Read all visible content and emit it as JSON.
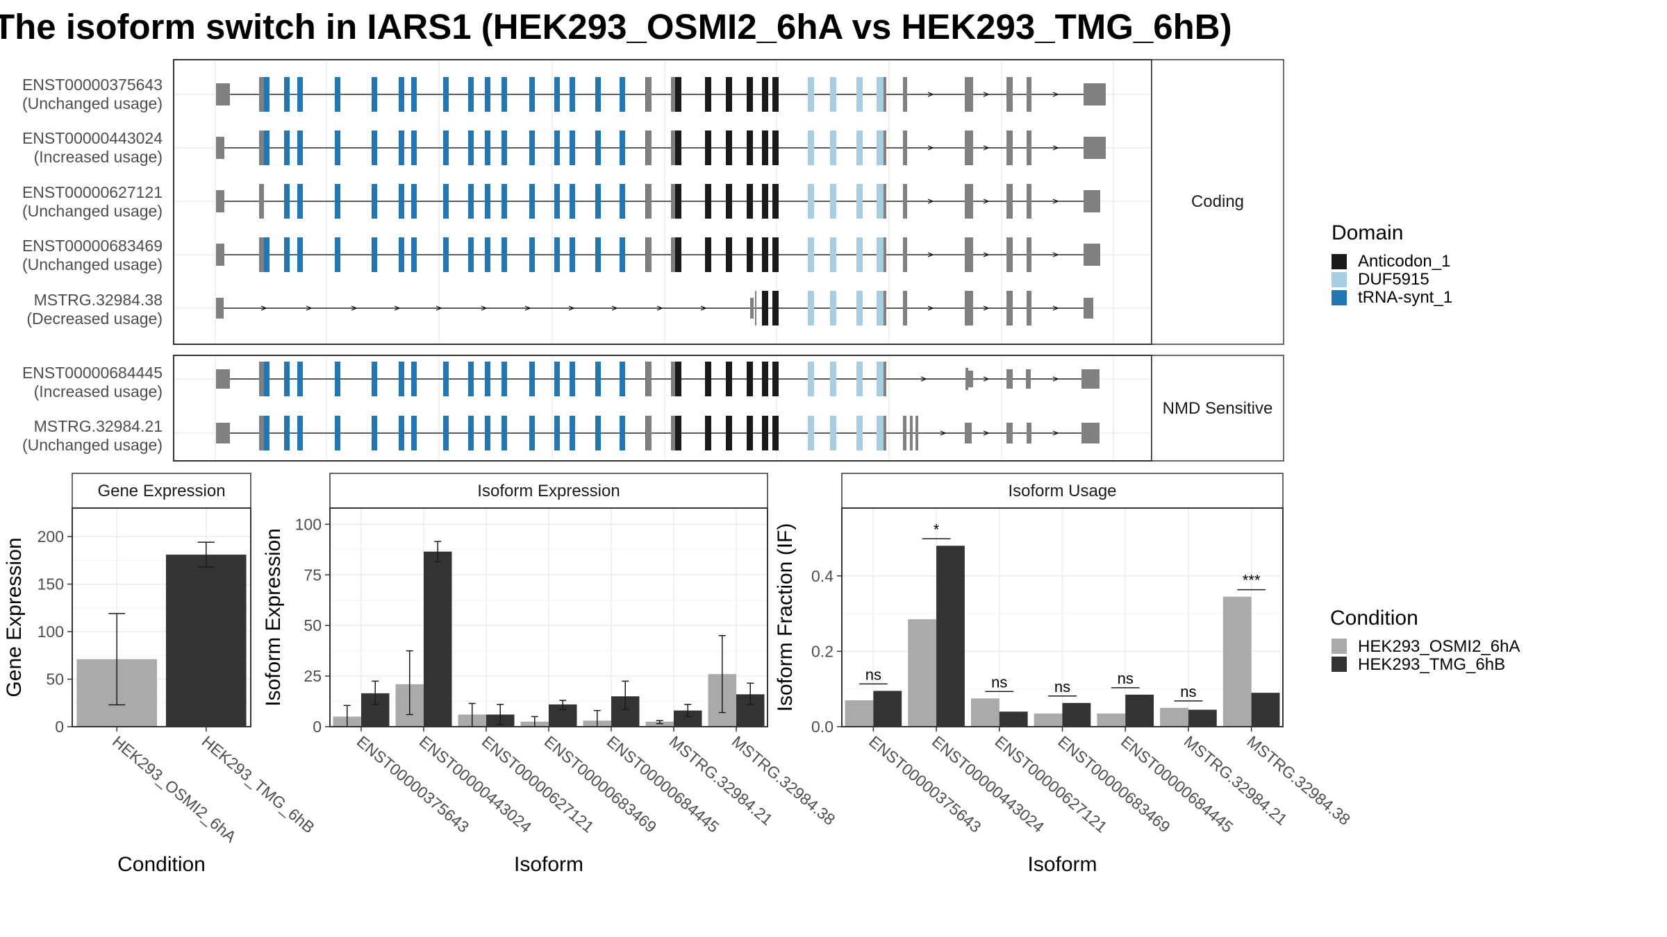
{
  "title": "The isoform switch in IARS1 (HEK293_OSMI2_6hA vs HEK293_TMG_6hB)",
  "colors": {
    "anticodon": "#1a1a1a",
    "duf": "#a6cee3",
    "trna": "#1f78b4",
    "exon_other": "#808080",
    "cond_a": "#aaaaaa",
    "cond_b": "#333333",
    "panel_border": "#333333",
    "strip_fill": "#ffffff",
    "grid": "#ebebeb"
  },
  "structure": {
    "coding_label": "Coding",
    "nmd_label": "NMD Sensitive",
    "coding": [
      {
        "id": "ENST00000375643",
        "usage": "(Unchanged usage)"
      },
      {
        "id": "ENST00000443024",
        "usage": "(Increased usage)"
      },
      {
        "id": "ENST00000627121",
        "usage": "(Unchanged usage)"
      },
      {
        "id": "ENST00000683469",
        "usage": "(Unchanged usage)"
      },
      {
        "id": "MSTRG.32984.38",
        "usage": "(Decreased usage)"
      }
    ],
    "nmd": [
      {
        "id": "ENST00000684445",
        "usage": "(Increased usage)"
      },
      {
        "id": "MSTRG.32984.21",
        "usage": "(Unchanged usage)"
      }
    ]
  },
  "legends": {
    "domain_title": "Domain",
    "domain_items": [
      {
        "label": "Anticodon_1",
        "color": "#1a1a1a"
      },
      {
        "label": "DUF5915",
        "color": "#a6cee3"
      },
      {
        "label": "tRNA-synt_1",
        "color": "#1f78b4"
      }
    ],
    "condition_title": "Condition",
    "condition_items": [
      {
        "label": "HEK293_OSMI2_6hA",
        "color": "#aaaaaa"
      },
      {
        "label": "HEK293_TMG_6hB",
        "color": "#333333"
      }
    ]
  },
  "chart_data": [
    {
      "type": "bar",
      "title": "Gene Expression",
      "xlabel": "Condition",
      "ylabel": "Gene Expression",
      "ylim": [
        0,
        230
      ],
      "yticks": [
        0,
        50,
        100,
        150,
        200
      ],
      "categories": [
        "HEK293_OSMI2_6hA",
        "HEK293_TMG_6hB"
      ],
      "values": [
        71,
        181
      ],
      "error_low": [
        23,
        168
      ],
      "error_high": [
        119,
        194
      ]
    },
    {
      "type": "bar",
      "title": "Isoform Expression",
      "xlabel": "Isoform",
      "ylabel": "Isoform Expression",
      "ylim": [
        0,
        108
      ],
      "yticks": [
        0,
        25,
        50,
        75,
        100
      ],
      "categories": [
        "ENST00000375643",
        "ENST00000443024",
        "ENST00000627121",
        "ENST00000683469",
        "ENST00000684445",
        "MSTRG.32984.21",
        "MSTRG.32984.38"
      ],
      "series": [
        {
          "name": "HEK293_OSMI2_6hA",
          "values": [
            5,
            21,
            6,
            2.5,
            3,
            2.5,
            26
          ],
          "error_low": [
            0,
            6,
            0,
            0,
            0,
            1.5,
            7
          ],
          "error_high": [
            10.5,
            37.5,
            11.5,
            5,
            8,
            3,
            45
          ]
        },
        {
          "name": "HEK293_TMG_6hB",
          "values": [
            16.5,
            86.5,
            6,
            11,
            15,
            8,
            16
          ],
          "error_low": [
            11,
            81.5,
            1,
            8.5,
            8.5,
            5,
            11
          ],
          "error_high": [
            22.5,
            91.5,
            11,
            13,
            22.5,
            11,
            21.5
          ]
        }
      ]
    },
    {
      "type": "bar",
      "title": "Isoform Usage",
      "xlabel": "Isoform",
      "ylabel": "Isoform Fraction (IF)",
      "ylim": [
        0,
        0.58
      ],
      "yticks": [
        0.0,
        0.2,
        0.4
      ],
      "categories": [
        "ENST00000375643",
        "ENST00000443024",
        "ENST00000627121",
        "ENST00000683469",
        "ENST00000684445",
        "MSTRG.32984.21",
        "MSTRG.32984.38"
      ],
      "series": [
        {
          "name": "HEK293_OSMI2_6hA",
          "values": [
            0.07,
            0.285,
            0.075,
            0.035,
            0.035,
            0.05,
            0.345
          ]
        },
        {
          "name": "HEK293_TMG_6hB",
          "values": [
            0.095,
            0.48,
            0.04,
            0.063,
            0.085,
            0.045,
            0.09
          ]
        }
      ],
      "significance": [
        "ns",
        "*",
        "ns",
        "ns",
        "ns",
        "ns",
        "***"
      ]
    }
  ]
}
